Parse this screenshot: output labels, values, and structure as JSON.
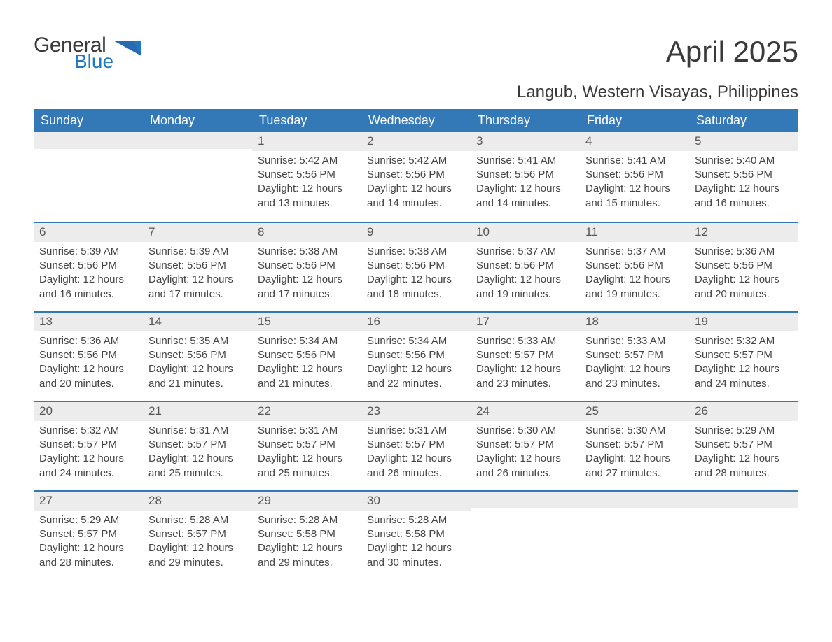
{
  "logo": {
    "word1": "General",
    "word2": "Blue"
  },
  "title": "April 2025",
  "subtitle": "Langub, Western Visayas, Philippines",
  "colors": {
    "header_bg": "#3379b7",
    "header_text": "#ffffff",
    "daynum_bg": "#ececec",
    "text": "#444444",
    "accent": "#1f78c1"
  },
  "typography": {
    "title_fontsize": 42,
    "subtitle_fontsize": 24,
    "dow_fontsize": 18,
    "body_fontsize": 15
  },
  "layout": {
    "columns": 7,
    "rows": 5
  },
  "days_of_week": [
    "Sunday",
    "Monday",
    "Tuesday",
    "Wednesday",
    "Thursday",
    "Friday",
    "Saturday"
  ],
  "weeks": [
    [
      {
        "n": "",
        "sr": "",
        "ss": "",
        "dl": ""
      },
      {
        "n": "",
        "sr": "",
        "ss": "",
        "dl": ""
      },
      {
        "n": "1",
        "sr": "Sunrise: 5:42 AM",
        "ss": "Sunset: 5:56 PM",
        "dl": "Daylight: 12 hours and 13 minutes."
      },
      {
        "n": "2",
        "sr": "Sunrise: 5:42 AM",
        "ss": "Sunset: 5:56 PM",
        "dl": "Daylight: 12 hours and 14 minutes."
      },
      {
        "n": "3",
        "sr": "Sunrise: 5:41 AM",
        "ss": "Sunset: 5:56 PM",
        "dl": "Daylight: 12 hours and 14 minutes."
      },
      {
        "n": "4",
        "sr": "Sunrise: 5:41 AM",
        "ss": "Sunset: 5:56 PM",
        "dl": "Daylight: 12 hours and 15 minutes."
      },
      {
        "n": "5",
        "sr": "Sunrise: 5:40 AM",
        "ss": "Sunset: 5:56 PM",
        "dl": "Daylight: 12 hours and 16 minutes."
      }
    ],
    [
      {
        "n": "6",
        "sr": "Sunrise: 5:39 AM",
        "ss": "Sunset: 5:56 PM",
        "dl": "Daylight: 12 hours and 16 minutes."
      },
      {
        "n": "7",
        "sr": "Sunrise: 5:39 AM",
        "ss": "Sunset: 5:56 PM",
        "dl": "Daylight: 12 hours and 17 minutes."
      },
      {
        "n": "8",
        "sr": "Sunrise: 5:38 AM",
        "ss": "Sunset: 5:56 PM",
        "dl": "Daylight: 12 hours and 17 minutes."
      },
      {
        "n": "9",
        "sr": "Sunrise: 5:38 AM",
        "ss": "Sunset: 5:56 PM",
        "dl": "Daylight: 12 hours and 18 minutes."
      },
      {
        "n": "10",
        "sr": "Sunrise: 5:37 AM",
        "ss": "Sunset: 5:56 PM",
        "dl": "Daylight: 12 hours and 19 minutes."
      },
      {
        "n": "11",
        "sr": "Sunrise: 5:37 AM",
        "ss": "Sunset: 5:56 PM",
        "dl": "Daylight: 12 hours and 19 minutes."
      },
      {
        "n": "12",
        "sr": "Sunrise: 5:36 AM",
        "ss": "Sunset: 5:56 PM",
        "dl": "Daylight: 12 hours and 20 minutes."
      }
    ],
    [
      {
        "n": "13",
        "sr": "Sunrise: 5:36 AM",
        "ss": "Sunset: 5:56 PM",
        "dl": "Daylight: 12 hours and 20 minutes."
      },
      {
        "n": "14",
        "sr": "Sunrise: 5:35 AM",
        "ss": "Sunset: 5:56 PM",
        "dl": "Daylight: 12 hours and 21 minutes."
      },
      {
        "n": "15",
        "sr": "Sunrise: 5:34 AM",
        "ss": "Sunset: 5:56 PM",
        "dl": "Daylight: 12 hours and 21 minutes."
      },
      {
        "n": "16",
        "sr": "Sunrise: 5:34 AM",
        "ss": "Sunset: 5:56 PM",
        "dl": "Daylight: 12 hours and 22 minutes."
      },
      {
        "n": "17",
        "sr": "Sunrise: 5:33 AM",
        "ss": "Sunset: 5:57 PM",
        "dl": "Daylight: 12 hours and 23 minutes."
      },
      {
        "n": "18",
        "sr": "Sunrise: 5:33 AM",
        "ss": "Sunset: 5:57 PM",
        "dl": "Daylight: 12 hours and 23 minutes."
      },
      {
        "n": "19",
        "sr": "Sunrise: 5:32 AM",
        "ss": "Sunset: 5:57 PM",
        "dl": "Daylight: 12 hours and 24 minutes."
      }
    ],
    [
      {
        "n": "20",
        "sr": "Sunrise: 5:32 AM",
        "ss": "Sunset: 5:57 PM",
        "dl": "Daylight: 12 hours and 24 minutes."
      },
      {
        "n": "21",
        "sr": "Sunrise: 5:31 AM",
        "ss": "Sunset: 5:57 PM",
        "dl": "Daylight: 12 hours and 25 minutes."
      },
      {
        "n": "22",
        "sr": "Sunrise: 5:31 AM",
        "ss": "Sunset: 5:57 PM",
        "dl": "Daylight: 12 hours and 25 minutes."
      },
      {
        "n": "23",
        "sr": "Sunrise: 5:31 AM",
        "ss": "Sunset: 5:57 PM",
        "dl": "Daylight: 12 hours and 26 minutes."
      },
      {
        "n": "24",
        "sr": "Sunrise: 5:30 AM",
        "ss": "Sunset: 5:57 PM",
        "dl": "Daylight: 12 hours and 26 minutes."
      },
      {
        "n": "25",
        "sr": "Sunrise: 5:30 AM",
        "ss": "Sunset: 5:57 PM",
        "dl": "Daylight: 12 hours and 27 minutes."
      },
      {
        "n": "26",
        "sr": "Sunrise: 5:29 AM",
        "ss": "Sunset: 5:57 PM",
        "dl": "Daylight: 12 hours and 28 minutes."
      }
    ],
    [
      {
        "n": "27",
        "sr": "Sunrise: 5:29 AM",
        "ss": "Sunset: 5:57 PM",
        "dl": "Daylight: 12 hours and 28 minutes."
      },
      {
        "n": "28",
        "sr": "Sunrise: 5:28 AM",
        "ss": "Sunset: 5:57 PM",
        "dl": "Daylight: 12 hours and 29 minutes."
      },
      {
        "n": "29",
        "sr": "Sunrise: 5:28 AM",
        "ss": "Sunset: 5:58 PM",
        "dl": "Daylight: 12 hours and 29 minutes."
      },
      {
        "n": "30",
        "sr": "Sunrise: 5:28 AM",
        "ss": "Sunset: 5:58 PM",
        "dl": "Daylight: 12 hours and 30 minutes."
      },
      {
        "n": "",
        "sr": "",
        "ss": "",
        "dl": ""
      },
      {
        "n": "",
        "sr": "",
        "ss": "",
        "dl": ""
      },
      {
        "n": "",
        "sr": "",
        "ss": "",
        "dl": ""
      }
    ]
  ]
}
